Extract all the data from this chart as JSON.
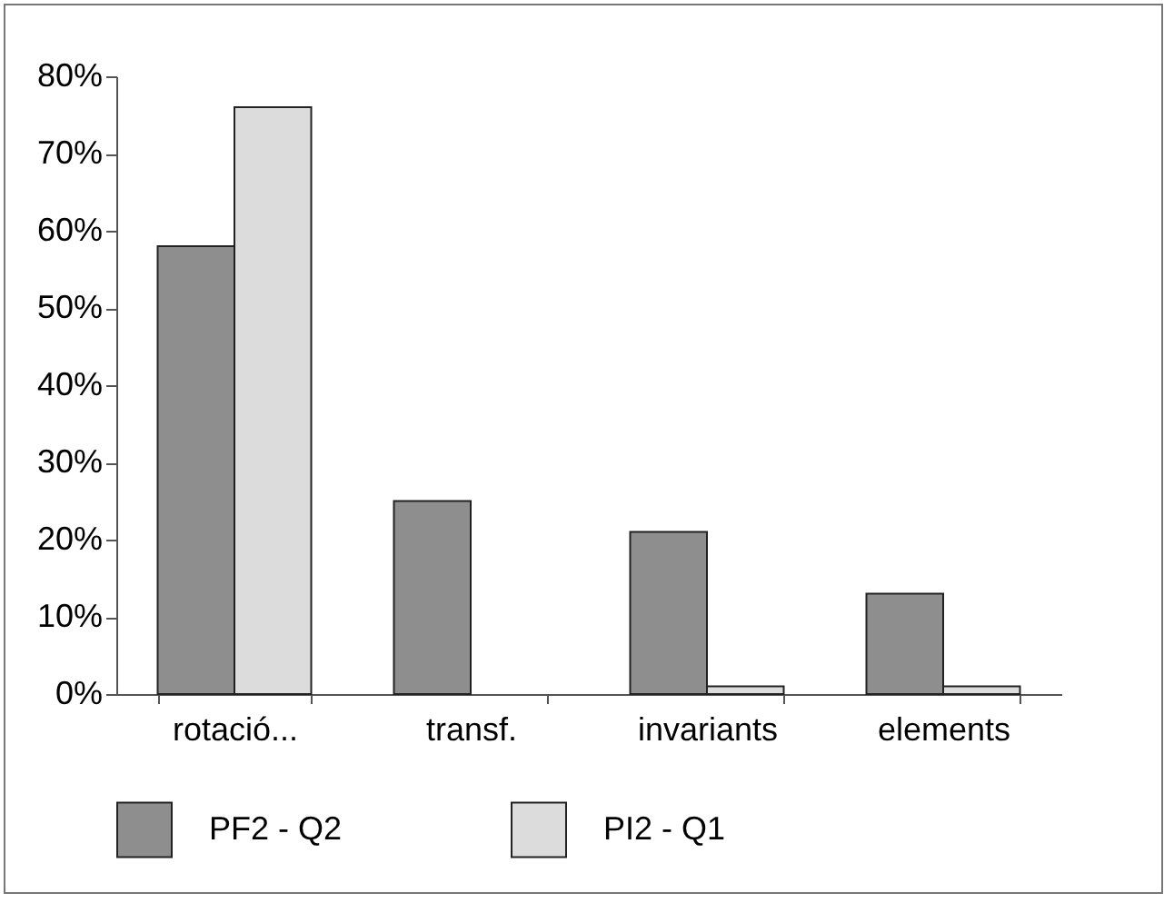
{
  "chart_data": {
    "type": "bar",
    "categories": [
      "rotació...",
      "transf.",
      "invariants",
      "elements"
    ],
    "series": [
      {
        "name": "PF2 - Q2",
        "color": "#8e8e8e",
        "values": [
          58,
          25,
          21,
          13
        ]
      },
      {
        "name": "PI2 - Q1",
        "color": "#dcdcdc",
        "values": [
          76,
          null,
          1,
          1
        ]
      }
    ],
    "ylim": [
      0,
      80
    ],
    "yticks": [
      {
        "value": 0,
        "label": "0%"
      },
      {
        "value": 10,
        "label": "10%"
      },
      {
        "value": 20,
        "label": "20%"
      },
      {
        "value": 30,
        "label": "30%"
      },
      {
        "value": 40,
        "label": "40%"
      },
      {
        "value": 50,
        "label": "50%"
      },
      {
        "value": 60,
        "label": "60%"
      },
      {
        "value": 70,
        "label": "70%"
      },
      {
        "value": 80,
        "label": "80%"
      }
    ],
    "grid": false,
    "legend": "bottom"
  }
}
